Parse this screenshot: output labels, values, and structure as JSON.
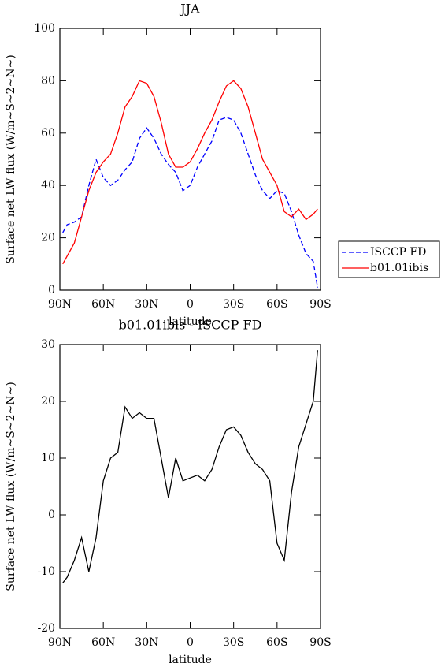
{
  "chart_data": [
    {
      "type": "line",
      "title": "JJA",
      "xlabel": "latitude",
      "ylabel": "Surface net LW flux (W/m~S~2~N~)",
      "x": [
        88,
        85,
        80,
        75,
        70,
        65,
        60,
        55,
        50,
        45,
        40,
        35,
        30,
        25,
        20,
        15,
        10,
        5,
        0,
        -5,
        -10,
        -15,
        -20,
        -25,
        -30,
        -35,
        -40,
        -45,
        -50,
        -55,
        -60,
        -65,
        -70,
        -75,
        -80,
        -85,
        -88
      ],
      "series": [
        {
          "name": "ISCCP FD",
          "color": "#0000ff",
          "style": "dashed",
          "values": [
            22,
            25,
            26,
            28,
            40,
            50,
            43,
            40,
            42,
            46,
            49,
            58,
            62,
            58,
            52,
            48,
            45,
            38,
            40,
            47,
            52,
            57,
            65,
            66,
            65,
            60,
            52,
            44,
            38,
            35,
            38,
            37,
            30,
            21,
            14,
            11,
            1
          ]
        },
        {
          "name": "b01.01ibis",
          "color": "#ff0000",
          "style": "solid",
          "values": [
            10,
            13,
            18,
            28,
            38,
            45,
            49,
            52,
            60,
            70,
            74,
            80,
            79,
            74,
            64,
            52,
            47,
            47,
            49,
            54,
            60,
            65,
            72,
            78,
            80,
            77,
            70,
            60,
            50,
            45,
            40,
            30,
            28,
            31,
            27,
            29,
            31
          ]
        }
      ],
      "xlim": [
        90,
        -90
      ],
      "xticks": [
        {
          "value": 90,
          "label": "90N"
        },
        {
          "value": 60,
          "label": "60N"
        },
        {
          "value": 30,
          "label": "30N"
        },
        0,
        {
          "value": -30,
          "label": "30S"
        },
        {
          "value": -60,
          "label": "60S"
        },
        {
          "value": -90,
          "label": "90S"
        }
      ],
      "ylim": [
        0,
        100
      ],
      "yticks": [
        0,
        20,
        40,
        60,
        80,
        100
      ],
      "legend": "right"
    },
    {
      "type": "line",
      "title": "b01.01ibis - ISCCP FD",
      "xlabel": "latitude",
      "ylabel": "Surface net LW flux (W/m~S~2~N~)",
      "x": [
        88,
        85,
        80,
        75,
        70,
        65,
        60,
        55,
        50,
        45,
        40,
        35,
        30,
        25,
        20,
        15,
        10,
        5,
        0,
        -5,
        -10,
        -15,
        -20,
        -25,
        -30,
        -35,
        -40,
        -45,
        -50,
        -55,
        -60,
        -65,
        -70,
        -75,
        -80,
        -85,
        -88
      ],
      "color": "#000000",
      "values": [
        -12,
        -11,
        -8,
        -4,
        -10,
        -4,
        6,
        10,
        11,
        19,
        17,
        18,
        17,
        17,
        10,
        3,
        10,
        6,
        6.5,
        7,
        6,
        8,
        12,
        15,
        15.5,
        14,
        11,
        9,
        8,
        6,
        -5,
        -8,
        4,
        12,
        16,
        20,
        29
      ],
      "xlim": [
        90,
        -90
      ],
      "xticks": [
        {
          "value": 90,
          "label": "90N"
        },
        {
          "value": 60,
          "label": "60N"
        },
        {
          "value": 30,
          "label": "30N"
        },
        0,
        {
          "value": -30,
          "label": "30S"
        },
        {
          "value": -60,
          "label": "60S"
        },
        {
          "value": -90,
          "label": "90S"
        }
      ],
      "ylim": [
        -20,
        30
      ],
      "yticks": [
        -20,
        -10,
        0,
        10,
        20,
        30
      ]
    }
  ]
}
